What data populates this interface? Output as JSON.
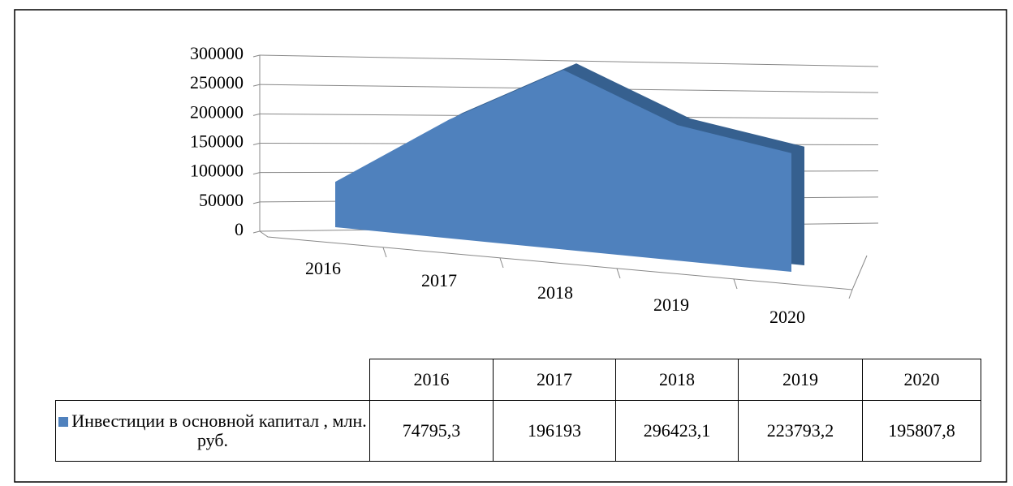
{
  "chart_data": {
    "type": "area",
    "categories": [
      "2016",
      "2017",
      "2018",
      "2019",
      "2020"
    ],
    "series": [
      {
        "name": "Инвестиции в основной капитал , млн. руб.",
        "color": "#4f81bd",
        "values": [
          74795.3,
          196193,
          296423.1,
          223793.2,
          195807.8
        ],
        "value_labels": [
          "74795,3",
          "196193",
          "296423,1",
          "223793,2",
          "195807,8"
        ]
      }
    ],
    "ylim": [
      0,
      300000
    ],
    "yticks": [
      0,
      50000,
      100000,
      150000,
      200000,
      250000,
      300000
    ],
    "grid": true,
    "data_table": true
  }
}
